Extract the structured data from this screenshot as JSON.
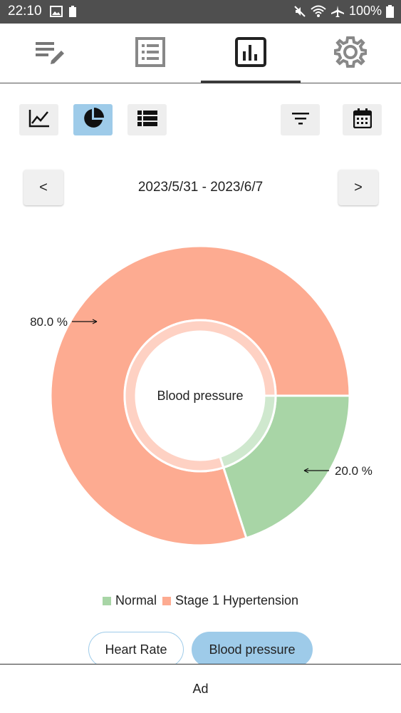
{
  "status_bar": {
    "time": "22:10",
    "battery_text": "100%",
    "icons": [
      "image-icon",
      "battery-saver-icon",
      "mute-icon",
      "wifi-icon",
      "airplane-icon",
      "battery-icon"
    ]
  },
  "top_tabs": [
    {
      "name": "edit-entry",
      "icon": "edit-list-icon",
      "active": false
    },
    {
      "name": "list",
      "icon": "list-icon",
      "active": false
    },
    {
      "name": "chart",
      "icon": "bar-chart-icon",
      "active": true
    },
    {
      "name": "settings",
      "icon": "gear-icon",
      "active": false
    }
  ],
  "toolbar": {
    "buttons": [
      {
        "name": "line-chart",
        "icon": "line-chart-icon",
        "selected": false
      },
      {
        "name": "pie-chart",
        "icon": "pie-chart-icon",
        "selected": true
      },
      {
        "name": "table-view",
        "icon": "table-icon",
        "selected": false
      },
      {
        "name": "filter",
        "icon": "filter-icon",
        "selected": false
      },
      {
        "name": "calendar",
        "icon": "calendar-icon",
        "selected": false
      }
    ]
  },
  "date_nav": {
    "prev_label": "<",
    "next_label": ">",
    "range": "2023/5/31 - 2023/6/7"
  },
  "chart_data": {
    "type": "pie",
    "title": "Blood pressure",
    "slices": [
      {
        "label": "Normal",
        "value": 20.0,
        "display": "20.0 %",
        "color": "#a8d5a6"
      },
      {
        "label": "Stage 1 Hypertension",
        "value": 80.0,
        "display": "80.0 %",
        "color": "#fdab91"
      }
    ]
  },
  "legend": [
    {
      "label": "Normal",
      "color": "#a8d5a6"
    },
    {
      "label": "Stage 1 Hypertension",
      "color": "#fdab91"
    }
  ],
  "metric_pills": {
    "heart_rate": "Heart Rate",
    "blood_pressure": "Blood pressure"
  },
  "ad_label": "Ad",
  "colors": {
    "accent": "#9ecbe9",
    "status_bar": "#4f4f4f"
  }
}
